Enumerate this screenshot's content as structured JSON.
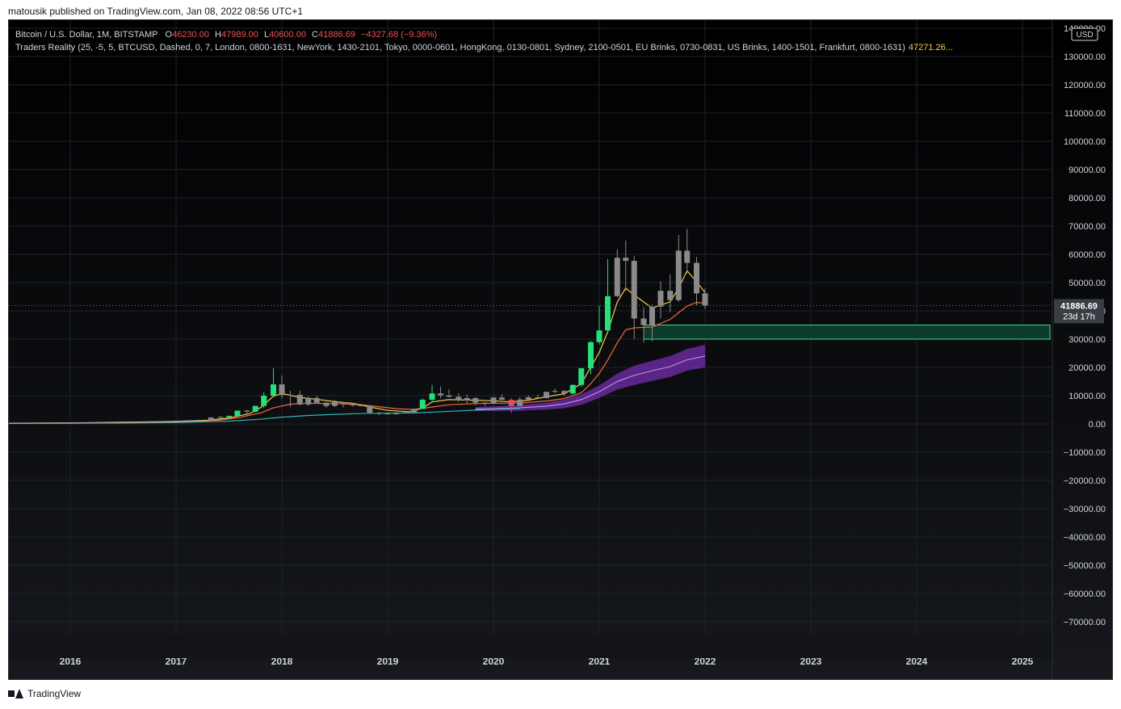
{
  "header": {
    "published": "matousik published on TradingView.com, Jan 08, 2022 08:56 UTC+1"
  },
  "footer": {
    "brand": "TradingView"
  },
  "legend": {
    "symbol": "Bitcoin / U.S. Dollar, 1M, BITSTAMP",
    "open_label": "O",
    "open": "46230.00",
    "high_label": "H",
    "high": "47989.00",
    "low_label": "L",
    "low": "40600.00",
    "close_label": "C",
    "close": "41886.69",
    "change": "−4327.68 (−9.36%)",
    "indicator": "Traders Reality (25, -5, 5, BTCUSD, Dashed, 0, 7, London, 0800-1631, NewYork, 1430-2101, Tokyo, 0000-0601, HongKong, 0130-0801, Sydney, 2100-0501, EU Brinks, 0730-0831, US Brinks, 1400-1501, Frankfurt, 0800-1631)",
    "indicator_value": "47271.26..."
  },
  "colors": {
    "background": "#000000",
    "grid": "#1e222d",
    "text": "#d1d4dc",
    "up": "#26e07c",
    "down": "#e84b5a",
    "neutral": "#8a8a8a",
    "ema_fast": "#f7c948",
    "ema_slow": "#f06a40",
    "ema_long": "#2fb7b0",
    "zone_fill": "#0d3d2a",
    "zone_border": "#3fd8a8",
    "cloud": "#6a2a9e"
  },
  "chart_data": {
    "type": "candlestick",
    "currency": "USD",
    "current_price": "41886.69",
    "countdown": "23d 17h",
    "ylim": [
      -75000,
      140000
    ],
    "y_ticks": [
      140000,
      130000,
      120000,
      110000,
      100000,
      90000,
      80000,
      70000,
      60000,
      50000,
      40000,
      30000,
      20000,
      10000,
      0,
      -10000,
      -20000,
      -30000,
      -40000,
      -50000,
      -60000,
      -70000
    ],
    "y_tick_labels": [
      "140000.00",
      "130000.00",
      "120000.00",
      "110000.00",
      "100000.00",
      "90000.00",
      "80000.00",
      "70000.00",
      "60000.00",
      "50000.00",
      "40000.00",
      "30000.00",
      "20000.00",
      "10000.00",
      "0.00",
      "−10000.00",
      "−20000.00",
      "−30000.00",
      "−40000.00",
      "−50000.00",
      "−60000.00",
      "−70000.00"
    ],
    "xlim": [
      2015.4,
      2025.3
    ],
    "x_ticks": [
      2016,
      2017,
      2018,
      2019,
      2020,
      2021,
      2022,
      2023,
      2024,
      2025
    ],
    "x_tick_labels": [
      "2016",
      "2017",
      "2018",
      "2019",
      "2020",
      "2021",
      "2022",
      "2023",
      "2024",
      "2025"
    ],
    "candles": [
      {
        "t": 2017.33,
        "o": 1350,
        "h": 2300,
        "l": 1300,
        "c": 2300
      },
      {
        "t": 2017.42,
        "o": 2300,
        "h": 2800,
        "l": 2100,
        "c": 2450
      },
      {
        "t": 2017.5,
        "o": 2450,
        "h": 2900,
        "l": 1900,
        "c": 2870
      },
      {
        "t": 2017.58,
        "o": 2870,
        "h": 4700,
        "l": 2700,
        "c": 4700
      },
      {
        "t": 2017.67,
        "o": 4700,
        "h": 5000,
        "l": 3000,
        "c": 4350
      },
      {
        "t": 2017.75,
        "o": 4350,
        "h": 6400,
        "l": 4100,
        "c": 6400
      },
      {
        "t": 2017.83,
        "o": 6400,
        "h": 11300,
        "l": 5500,
        "c": 10000
      },
      {
        "t": 2017.92,
        "o": 10000,
        "h": 19700,
        "l": 10000,
        "c": 14000
      },
      {
        "t": 2018.0,
        "o": 14000,
        "h": 17200,
        "l": 9000,
        "c": 10200
      },
      {
        "t": 2018.08,
        "o": 10200,
        "h": 11700,
        "l": 5900,
        "c": 10300
      },
      {
        "t": 2018.17,
        "o": 10300,
        "h": 11700,
        "l": 6500,
        "c": 6900
      },
      {
        "t": 2018.25,
        "o": 6900,
        "h": 9700,
        "l": 6400,
        "c": 9200
      },
      {
        "t": 2018.33,
        "o": 9200,
        "h": 10000,
        "l": 7200,
        "c": 7500
      },
      {
        "t": 2018.42,
        "o": 7500,
        "h": 7800,
        "l": 5700,
        "c": 6400
      },
      {
        "t": 2018.5,
        "o": 6400,
        "h": 8500,
        "l": 6000,
        "c": 7700
      },
      {
        "t": 2018.58,
        "o": 7700,
        "h": 7700,
        "l": 5900,
        "c": 7000
      },
      {
        "t": 2018.67,
        "o": 7000,
        "h": 7400,
        "l": 6100,
        "c": 6600
      },
      {
        "t": 2018.75,
        "o": 6600,
        "h": 7000,
        "l": 6200,
        "c": 6300
      },
      {
        "t": 2018.83,
        "o": 6300,
        "h": 6500,
        "l": 3500,
        "c": 4000
      },
      {
        "t": 2018.92,
        "o": 4000,
        "h": 4300,
        "l": 3150,
        "c": 3700
      },
      {
        "t": 2019.0,
        "o": 3700,
        "h": 4100,
        "l": 3350,
        "c": 3450
      },
      {
        "t": 2019.08,
        "o": 3450,
        "h": 4200,
        "l": 3350,
        "c": 3800
      },
      {
        "t": 2019.17,
        "o": 3800,
        "h": 4100,
        "l": 3700,
        "c": 4100
      },
      {
        "t": 2019.25,
        "o": 4100,
        "h": 5600,
        "l": 4050,
        "c": 5300
      },
      {
        "t": 2019.33,
        "o": 5300,
        "h": 9000,
        "l": 5300,
        "c": 8550
      },
      {
        "t": 2019.42,
        "o": 8550,
        "h": 13800,
        "l": 7500,
        "c": 10800
      },
      {
        "t": 2019.5,
        "o": 10800,
        "h": 13200,
        "l": 9100,
        "c": 10100
      },
      {
        "t": 2019.58,
        "o": 10100,
        "h": 12300,
        "l": 9400,
        "c": 9600
      },
      {
        "t": 2019.67,
        "o": 9600,
        "h": 10900,
        "l": 7800,
        "c": 8300
      },
      {
        "t": 2019.75,
        "o": 8300,
        "h": 10400,
        "l": 7300,
        "c": 9150
      },
      {
        "t": 2019.83,
        "o": 9150,
        "h": 9500,
        "l": 6600,
        "c": 7550
      },
      {
        "t": 2019.92,
        "o": 7550,
        "h": 7700,
        "l": 6400,
        "c": 7200
      },
      {
        "t": 2020.0,
        "o": 7200,
        "h": 9600,
        "l": 6900,
        "c": 9350
      },
      {
        "t": 2020.08,
        "o": 9350,
        "h": 10500,
        "l": 8500,
        "c": 8550
      },
      {
        "t": 2020.17,
        "o": 8550,
        "h": 9200,
        "l": 3850,
        "c": 6400
      },
      {
        "t": 2020.25,
        "o": 6400,
        "h": 9500,
        "l": 6150,
        "c": 8650
      },
      {
        "t": 2020.33,
        "o": 8650,
        "h": 10100,
        "l": 8100,
        "c": 9450
      },
      {
        "t": 2020.42,
        "o": 9450,
        "h": 10400,
        "l": 8900,
        "c": 9150
      },
      {
        "t": 2020.5,
        "o": 9150,
        "h": 11400,
        "l": 8950,
        "c": 11350
      },
      {
        "t": 2020.58,
        "o": 11350,
        "h": 12500,
        "l": 10900,
        "c": 11650
      },
      {
        "t": 2020.67,
        "o": 11650,
        "h": 12050,
        "l": 9850,
        "c": 10780
      },
      {
        "t": 2020.75,
        "o": 10780,
        "h": 14000,
        "l": 10400,
        "c": 13800
      },
      {
        "t": 2020.83,
        "o": 13800,
        "h": 19900,
        "l": 13200,
        "c": 19700
      },
      {
        "t": 2020.92,
        "o": 19700,
        "h": 29300,
        "l": 17600,
        "c": 28950
      },
      {
        "t": 2021.0,
        "o": 28950,
        "h": 41900,
        "l": 28100,
        "c": 33100
      },
      {
        "t": 2021.08,
        "o": 33100,
        "h": 58300,
        "l": 32300,
        "c": 45200
      },
      {
        "t": 2021.17,
        "o": 45200,
        "h": 61800,
        "l": 44900,
        "c": 58800
      },
      {
        "t": 2021.25,
        "o": 58800,
        "h": 64900,
        "l": 47000,
        "c": 57700
      },
      {
        "t": 2021.33,
        "o": 57700,
        "h": 59500,
        "l": 30000,
        "c": 37300
      },
      {
        "t": 2021.42,
        "o": 37300,
        "h": 41300,
        "l": 28800,
        "c": 35000
      },
      {
        "t": 2021.5,
        "o": 35000,
        "h": 42400,
        "l": 29300,
        "c": 41500
      },
      {
        "t": 2021.58,
        "o": 41500,
        "h": 50500,
        "l": 37300,
        "c": 47100
      },
      {
        "t": 2021.67,
        "o": 47100,
        "h": 52900,
        "l": 39600,
        "c": 43800
      },
      {
        "t": 2021.75,
        "o": 43800,
        "h": 66900,
        "l": 43300,
        "c": 61300
      },
      {
        "t": 2021.83,
        "o": 61300,
        "h": 69000,
        "l": 53300,
        "c": 57000
      },
      {
        "t": 2021.92,
        "o": 57000,
        "h": 59100,
        "l": 42000,
        "c": 46200
      },
      {
        "t": 2022.0,
        "o": 46230,
        "h": 47989,
        "l": 40600,
        "c": 41886.69
      }
    ],
    "ema_fast": [
      [
        2015.4,
        250
      ],
      [
        2016.0,
        380
      ],
      [
        2016.5,
        600
      ],
      [
        2017.0,
        900
      ],
      [
        2017.3,
        1300
      ],
      [
        2017.5,
        2100
      ],
      [
        2017.7,
        3700
      ],
      [
        2017.8,
        5800
      ],
      [
        2017.92,
        9800
      ],
      [
        2018.0,
        10800
      ],
      [
        2018.17,
        9400
      ],
      [
        2018.33,
        8700
      ],
      [
        2018.5,
        7900
      ],
      [
        2018.67,
        7300
      ],
      [
        2018.83,
        6000
      ],
      [
        2019.0,
        4800
      ],
      [
        2019.2,
        4300
      ],
      [
        2019.33,
        5600
      ],
      [
        2019.42,
        7800
      ],
      [
        2019.58,
        8600
      ],
      [
        2019.83,
        8400
      ],
      [
        2020.0,
        8200
      ],
      [
        2020.17,
        7800
      ],
      [
        2020.33,
        8400
      ],
      [
        2020.5,
        9600
      ],
      [
        2020.67,
        10700
      ],
      [
        2020.83,
        14200
      ],
      [
        2020.92,
        20100
      ],
      [
        2021.0,
        25300
      ],
      [
        2021.08,
        32600
      ],
      [
        2021.17,
        43100
      ],
      [
        2021.25,
        48100
      ],
      [
        2021.33,
        45600
      ],
      [
        2021.5,
        41000
      ],
      [
        2021.67,
        43200
      ],
      [
        2021.75,
        48000
      ],
      [
        2021.83,
        54200
      ],
      [
        2021.92,
        50300
      ],
      [
        2022.0,
        46500
      ]
    ],
    "ema_slow": [
      [
        2015.4,
        250
      ],
      [
        2016.0,
        330
      ],
      [
        2016.5,
        480
      ],
      [
        2017.0,
        740
      ],
      [
        2017.4,
        1300
      ],
      [
        2017.6,
        2300
      ],
      [
        2017.8,
        3900
      ],
      [
        2017.92,
        5700
      ],
      [
        2018.08,
        7000
      ],
      [
        2018.25,
        7300
      ],
      [
        2018.5,
        7200
      ],
      [
        2018.75,
        6800
      ],
      [
        2018.92,
        6100
      ],
      [
        2019.08,
        5400
      ],
      [
        2019.25,
        5100
      ],
      [
        2019.42,
        6000
      ],
      [
        2019.58,
        6800
      ],
      [
        2019.83,
        7200
      ],
      [
        2020.0,
        7300
      ],
      [
        2020.25,
        7400
      ],
      [
        2020.5,
        8100
      ],
      [
        2020.67,
        9000
      ],
      [
        2020.83,
        11000
      ],
      [
        2020.92,
        14300
      ],
      [
        2021.0,
        17900
      ],
      [
        2021.08,
        22600
      ],
      [
        2021.17,
        28700
      ],
      [
        2021.25,
        33300
      ],
      [
        2021.33,
        34000
      ],
      [
        2021.5,
        34300
      ],
      [
        2021.67,
        37000
      ],
      [
        2021.83,
        41700
      ],
      [
        2021.92,
        43000
      ],
      [
        2022.0,
        42700
      ]
    ],
    "ema_long": [
      [
        2015.4,
        200
      ],
      [
        2016.0,
        250
      ],
      [
        2016.5,
        330
      ],
      [
        2017.0,
        500
      ],
      [
        2017.5,
        1000
      ],
      [
        2017.8,
        1700
      ],
      [
        2018.0,
        2400
      ],
      [
        2018.25,
        3000
      ],
      [
        2018.5,
        3400
      ],
      [
        2018.75,
        3700
      ],
      [
        2019.0,
        3800
      ],
      [
        2019.25,
        3900
      ],
      [
        2019.5,
        4300
      ],
      [
        2019.83,
        4900
      ],
      [
        2020.0,
        5200
      ],
      [
        2020.25,
        5500
      ]
    ],
    "cloud_mid": [
      [
        2019.83,
        5300
      ],
      [
        2020.0,
        5400
      ],
      [
        2020.25,
        5700
      ],
      [
        2020.5,
        6300
      ],
      [
        2020.67,
        7100
      ],
      [
        2020.83,
        8600
      ],
      [
        2021.0,
        11400
      ],
      [
        2021.17,
        15000
      ],
      [
        2021.33,
        17200
      ],
      [
        2021.5,
        18800
      ],
      [
        2021.67,
        20300
      ],
      [
        2021.83,
        22700
      ],
      [
        2022.0,
        24000
      ]
    ],
    "cloud_width": [
      [
        2019.83,
        700
      ],
      [
        2020.5,
        1200
      ],
      [
        2021.0,
        2200
      ],
      [
        2021.33,
        3400
      ],
      [
        2022.0,
        4000
      ]
    ],
    "zone": {
      "x_start": 2021.42,
      "x_end": 2025.26,
      "y_low": 30000,
      "y_high": 35000
    }
  }
}
